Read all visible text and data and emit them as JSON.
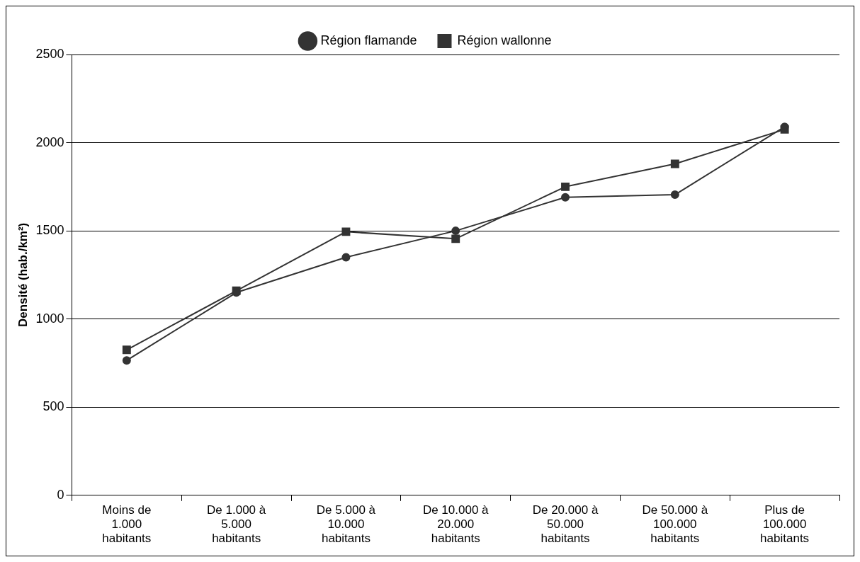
{
  "chart_data": {
    "type": "line",
    "ylabel": "Densité (hab./km²)",
    "categories": [
      "Moins de 1.000 habitants",
      "De 1.000 à 5.000 habitants",
      "De 5.000 à 10.000 habitants",
      "De 10.000 à 20.000 habitants",
      "De 20.000 à 50.000 habitants",
      "De 50.000 à 100.000 habitants",
      "Plus de 100.000 habitants"
    ],
    "series": [
      {
        "name": "Région flamande",
        "color": "#333333",
        "marker": "circle",
        "values": [
          765,
          1150,
          1350,
          1500,
          1690,
          1705,
          2090
        ]
      },
      {
        "name": "Région wallonne",
        "color": "#333333",
        "marker": "square",
        "values": [
          825,
          1160,
          1495,
          1455,
          1750,
          1880,
          2075
        ]
      }
    ],
    "ylim": [
      0,
      2500
    ],
    "yticks": [
      0,
      500,
      1000,
      1500,
      2000,
      2500
    ],
    "grid": "y",
    "legend": "top",
    "line_style": "solid"
  }
}
